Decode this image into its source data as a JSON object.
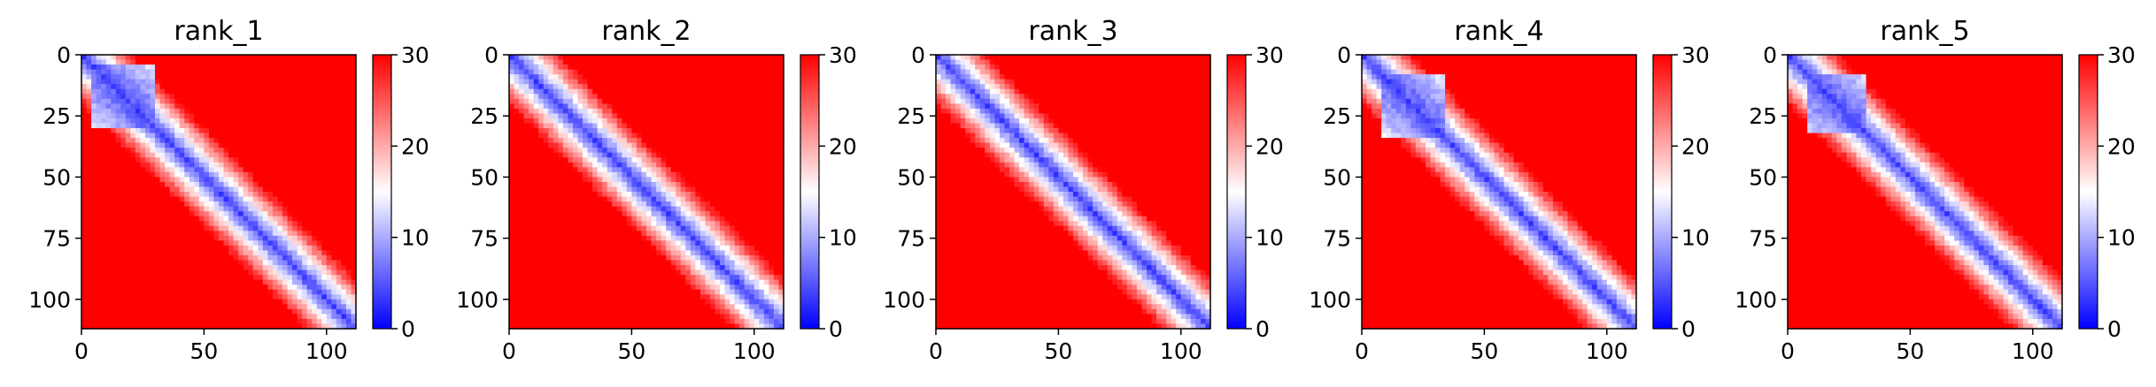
{
  "chart_data": [
    {
      "type": "heatmap",
      "title": "rank_1",
      "size": 112,
      "x_ticks": [
        0,
        50,
        100
      ],
      "y_ticks": [
        0,
        25,
        50,
        75,
        100
      ],
      "xlim": [
        0,
        112
      ],
      "ylim": [
        112,
        0
      ],
      "colorbar": {
        "min": 0,
        "max": 30,
        "ticks": [
          0,
          10,
          20,
          30
        ]
      },
      "colormap": [
        "#0000ff",
        "#ffffff",
        "#ff0000"
      ],
      "pattern": {
        "diagonal_band": "blue (0-8)",
        "off_diagonal": "red (~30)",
        "upper_right_region": "saturated red (30)",
        "low_value_block": [
          5,
          30
        ]
      }
    },
    {
      "type": "heatmap",
      "title": "rank_2",
      "size": 112,
      "x_ticks": [
        0,
        50,
        100
      ],
      "y_ticks": [
        0,
        25,
        50,
        75,
        100
      ],
      "xlim": [
        0,
        112
      ],
      "ylim": [
        112,
        0
      ],
      "colorbar": {
        "min": 0,
        "max": 30,
        "ticks": [
          0,
          10,
          20,
          30
        ]
      },
      "colormap": [
        "#0000ff",
        "#ffffff",
        "#ff0000"
      ],
      "pattern": {
        "diagonal_band": "blue (0-8)",
        "off_diagonal": "red (~25-30)",
        "upper_right_region": "red (~26)",
        "low_value_block": null
      }
    },
    {
      "type": "heatmap",
      "title": "rank_3",
      "size": 112,
      "x_ticks": [
        0,
        50,
        100
      ],
      "y_ticks": [
        0,
        25,
        50,
        75,
        100
      ],
      "xlim": [
        0,
        112
      ],
      "ylim": [
        112,
        0
      ],
      "colorbar": {
        "min": 0,
        "max": 30,
        "ticks": [
          0,
          10,
          20,
          30
        ]
      },
      "colormap": [
        "#0000ff",
        "#ffffff",
        "#ff0000"
      ],
      "pattern": {
        "diagonal_band": "blue (0-8)",
        "off_diagonal": "red (~25-30)",
        "upper_right_region": "saturated red (30)",
        "low_value_block": null
      }
    },
    {
      "type": "heatmap",
      "title": "rank_4",
      "size": 112,
      "x_ticks": [
        0,
        50,
        100
      ],
      "y_ticks": [
        0,
        25,
        50,
        75,
        100
      ],
      "xlim": [
        0,
        112
      ],
      "ylim": [
        112,
        0
      ],
      "colorbar": {
        "min": 0,
        "max": 30,
        "ticks": [
          0,
          10,
          20,
          30
        ]
      },
      "colormap": [
        "#0000ff",
        "#ffffff",
        "#ff0000"
      ],
      "pattern": {
        "diagonal_band": "blue (0-8)",
        "off_diagonal": "red (~30)",
        "upper_right_region": "saturated red (30)",
        "low_value_block": [
          8,
          34
        ]
      }
    },
    {
      "type": "heatmap",
      "title": "rank_5",
      "size": 112,
      "x_ticks": [
        0,
        50,
        100
      ],
      "y_ticks": [
        0,
        25,
        50,
        75,
        100
      ],
      "xlim": [
        0,
        112
      ],
      "ylim": [
        112,
        0
      ],
      "colorbar": {
        "min": 0,
        "max": 30,
        "ticks": [
          0,
          10,
          20,
          30
        ]
      },
      "colormap": [
        "#0000ff",
        "#ffffff",
        "#ff0000"
      ],
      "pattern": {
        "diagonal_band": "blue (0-8)",
        "off_diagonal": "red (~25-30)",
        "upper_right_region": "red (~27)",
        "low_value_block": [
          8,
          32
        ]
      }
    }
  ]
}
